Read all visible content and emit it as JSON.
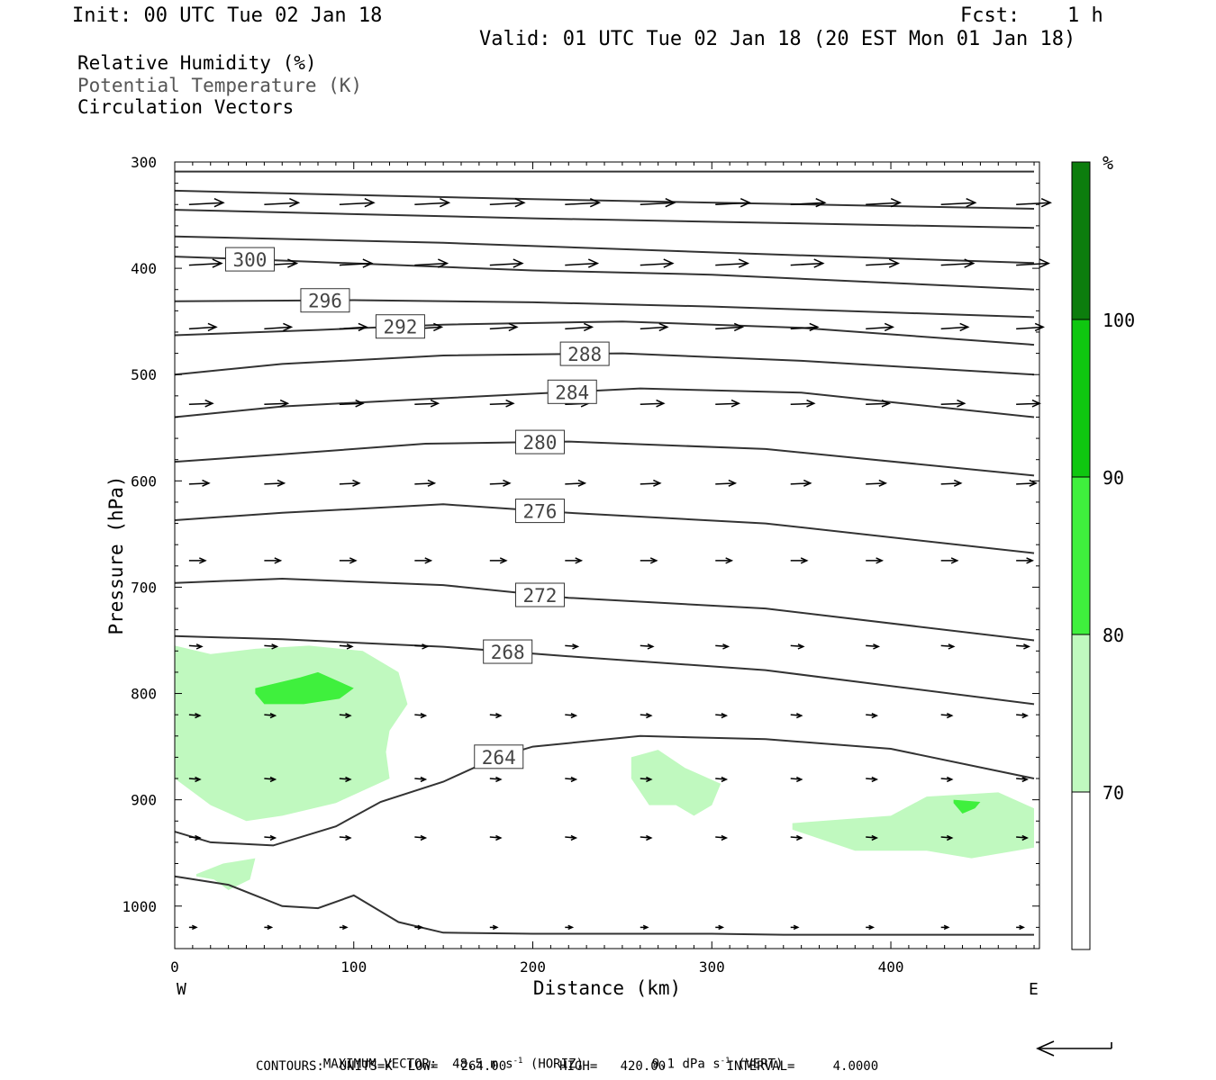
{
  "header": {
    "init": "Init: 00 UTC Tue 02 Jan 18",
    "fcst_label": "Fcst:",
    "fcst_value": "1 h",
    "valid": "Valid: 01 UTC Tue 02 Jan 18 (20 EST Mon 01 Jan 18)"
  },
  "legend": {
    "line1": "Relative Humidity (%)",
    "line2": "Potential Temperature (K)",
    "line3": "Circulation Vectors"
  },
  "chart_data": {
    "type": "cross-section",
    "xlabel": "Distance (km)",
    "ylabel": "Pressure (hPa)",
    "xlim": [
      0,
      483
    ],
    "ylim": [
      300,
      1040
    ],
    "x_ticks": [
      0,
      100,
      200,
      300,
      400
    ],
    "y_ticks": [
      300,
      400,
      500,
      600,
      700,
      800,
      900,
      1000
    ],
    "x_left_label": "W",
    "x_right_label": "E",
    "colorbar": {
      "unit": "%",
      "levels": [
        "70",
        "80",
        "90",
        "100"
      ],
      "colors": [
        "#ffffff",
        "#c0f9bf",
        "#3ff03d",
        "#0fc710",
        "#0c7d0d"
      ]
    },
    "theta_contours": [
      {
        "label": "",
        "x": [
          0,
          480
        ],
        "p": [
          309,
          309
        ]
      },
      {
        "label": "",
        "x": [
          0,
          200,
          480
        ],
        "p": [
          327,
          335,
          344
        ]
      },
      {
        "label": "",
        "x": [
          0,
          200,
          480
        ],
        "p": [
          345,
          353,
          362
        ]
      },
      {
        "label": "",
        "x": [
          0,
          150,
          300,
          480
        ],
        "p": [
          370,
          376,
          385,
          395
        ]
      },
      {
        "label": "300",
        "x": [
          0,
          50,
          200,
          300,
          480
        ],
        "p": [
          389,
          392,
          402,
          406,
          420
        ]
      },
      {
        "label": "296",
        "x": [
          0,
          100,
          200,
          300,
          480
        ],
        "p": [
          431,
          430,
          432,
          436,
          446
        ]
      },
      {
        "label": "292",
        "x": [
          0,
          80,
          150,
          250,
          350,
          480
        ],
        "p": [
          463,
          458,
          453,
          450,
          456,
          472
        ]
      },
      {
        "label": "288",
        "x": [
          0,
          60,
          150,
          250,
          350,
          480
        ],
        "p": [
          500,
          490,
          482,
          480,
          487,
          500
        ]
      },
      {
        "label": "284",
        "x": [
          0,
          60,
          140,
          260,
          350,
          480
        ],
        "p": [
          540,
          530,
          523,
          513,
          517,
          540
        ]
      },
      {
        "label": "280",
        "x": [
          0,
          60,
          140,
          220,
          330,
          480
        ],
        "p": [
          582,
          575,
          565,
          563,
          570,
          595
        ]
      },
      {
        "label": "276",
        "x": [
          0,
          60,
          150,
          220,
          330,
          480
        ],
        "p": [
          637,
          630,
          622,
          630,
          640,
          668
        ]
      },
      {
        "label": "272",
        "x": [
          0,
          60,
          150,
          220,
          330,
          480
        ],
        "p": [
          696,
          692,
          698,
          710,
          720,
          750
        ]
      },
      {
        "label": "268",
        "x": [
          0,
          60,
          150,
          220,
          330,
          480
        ],
        "p": [
          746,
          749,
          756,
          765,
          778,
          810
        ]
      },
      {
        "label": "264",
        "x": [
          0,
          20,
          55,
          90,
          115,
          150,
          180,
          200,
          260,
          330,
          400,
          480
        ],
        "p": [
          930,
          940,
          943,
          925,
          902,
          883,
          860,
          850,
          840,
          843,
          852,
          880
        ]
      },
      {
        "label": "",
        "x": [
          0,
          30,
          60,
          80,
          100,
          125,
          150,
          200,
          300,
          340,
          400,
          480
        ],
        "p": [
          972,
          980,
          1000,
          1002,
          990,
          1015,
          1025,
          1026,
          1026,
          1027,
          1027,
          1027
        ]
      }
    ],
    "rh_regions": [
      {
        "level": "70-80",
        "x": [
          0,
          20,
          45,
          75,
          105,
          125,
          130,
          120,
          118,
          120,
          90,
          60,
          40,
          20,
          0
        ],
        "p": [
          755,
          763,
          758,
          755,
          760,
          780,
          810,
          835,
          855,
          880,
          903,
          915,
          920,
          905,
          880
        ]
      },
      {
        "level": "70-80",
        "x": [
          12,
          27,
          45,
          42,
          30,
          22,
          12
        ],
        "p": [
          970,
          960,
          955,
          975,
          985,
          975,
          972
        ]
      },
      {
        "level": "70-80",
        "x": [
          255,
          270,
          285,
          305,
          300,
          290,
          280,
          265,
          255
        ],
        "p": [
          860,
          853,
          870,
          885,
          905,
          915,
          905,
          905,
          880
        ]
      },
      {
        "level": "70-80",
        "x": [
          345,
          400,
          420,
          460,
          480,
          480,
          445,
          420,
          380,
          345
        ],
        "p": [
          922,
          915,
          897,
          893,
          908,
          945,
          955,
          948,
          948,
          928
        ]
      },
      {
        "level": "80-90",
        "x": [
          45,
          70,
          80,
          100,
          92,
          72,
          50,
          45
        ],
        "p": [
          795,
          785,
          780,
          795,
          805,
          810,
          810,
          800
        ]
      },
      {
        "level": "80-90",
        "x": [
          435,
          450,
          447,
          440,
          435
        ],
        "p": [
          900,
          902,
          908,
          913,
          903
        ]
      }
    ],
    "vectors": {
      "columns_x": [
        8,
        50,
        92,
        134,
        176,
        218,
        260,
        302,
        344,
        386,
        428,
        470
      ],
      "rows": [
        {
          "p": 340,
          "u": 38,
          "w": 2
        },
        {
          "p": 397,
          "u": 36,
          "w": 2
        },
        {
          "p": 457,
          "u": 30,
          "w": 2
        },
        {
          "p": 528,
          "u": 26,
          "w": 1
        },
        {
          "p": 603,
          "u": 22,
          "w": 1
        },
        {
          "p": 675,
          "u": 18,
          "w": 0
        },
        {
          "p": 755,
          "u": 14,
          "w": -1
        },
        {
          "p": 820,
          "u": 12,
          "w": -1
        },
        {
          "p": 880,
          "u": 12,
          "w": -1
        },
        {
          "p": 935,
          "u": 12,
          "w": -1
        },
        {
          "p": 1020,
          "u": 8,
          "w": 0
        }
      ]
    }
  },
  "footer": {
    "max_vector_label": "MAXIMUM VECTOR:",
    "horiz_value": "48.5",
    "horiz_unit": "m s",
    "horiz_tag": "(HORIZ)",
    "vert_value": "9.1",
    "vert_unit": "dPa s",
    "vert_tag": "(VERT)",
    "exponent": "-1",
    "contours": "CONTOURS:  UNITS=K  LOW=   264.00       HIGH=   420.00        INTERVAL=     4.0000"
  }
}
